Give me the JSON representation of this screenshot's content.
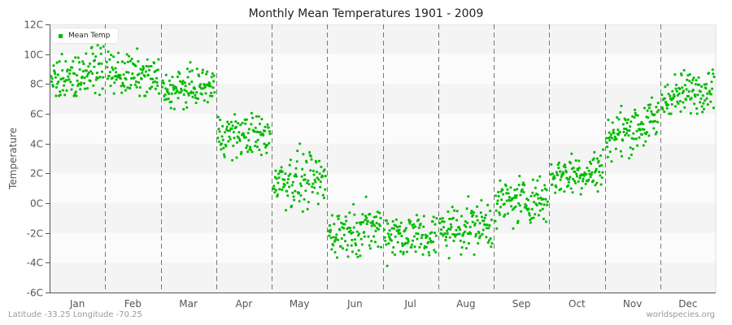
{
  "chart_data": {
    "type": "scatter",
    "title": "Monthly Mean Temperatures 1901 - 2009",
    "xlabel": "",
    "ylabel": "Temperature",
    "categories": [
      "Jan",
      "Feb",
      "Mar",
      "Apr",
      "May",
      "Jun",
      "Jul",
      "Aug",
      "Sep",
      "Oct",
      "Nov",
      "Dec"
    ],
    "yticks": [
      "12C",
      "10C",
      "8C",
      "6C",
      "4C",
      "2C",
      "0C",
      "-2C",
      "-4C",
      "-6C"
    ],
    "ytick_values": [
      12,
      10,
      8,
      6,
      4,
      2,
      0,
      -2,
      -4,
      -6
    ],
    "ylim": [
      -6,
      12
    ],
    "grid": "alternating horizontal bands, dashed vertical month dividers",
    "legend": {
      "position": "top-left",
      "entries": [
        "Mean Temp"
      ]
    },
    "series": [
      {
        "name": "Mean Temp",
        "color": "#00bb00",
        "points_per_month": 109,
        "monthly_distribution": [
          {
            "month": "Jan",
            "mean_start": 8.0,
            "mean_end": 9.2,
            "spread": 0.7,
            "min": 7.2,
            "max": 10.6
          },
          {
            "month": "Feb",
            "mean_start": 8.8,
            "mean_end": 8.3,
            "spread": 0.7,
            "min": 7.2,
            "max": 10.4
          },
          {
            "month": "Mar",
            "mean_start": 7.5,
            "mean_end": 7.9,
            "spread": 0.6,
            "min": 5.5,
            "max": 9.9
          },
          {
            "month": "Apr",
            "mean_start": 4.6,
            "mean_end": 4.5,
            "spread": 0.7,
            "min": 2.7,
            "max": 7.1
          },
          {
            "month": "May",
            "mean_start": 1.6,
            "mean_end": 1.4,
            "spread": 0.9,
            "min": -0.6,
            "max": 4.0
          },
          {
            "month": "Jun",
            "mean_start": -2.0,
            "mean_end": -1.6,
            "spread": 0.8,
            "min": -4.7,
            "max": 0.5
          },
          {
            "month": "Jul",
            "mean_start": -2.0,
            "mean_end": -2.3,
            "spread": 0.8,
            "min": -4.3,
            "max": 0.3
          },
          {
            "month": "Aug",
            "mean_start": -1.8,
            "mean_end": -1.4,
            "spread": 0.8,
            "min": -4.3,
            "max": 0.5
          },
          {
            "month": "Sep",
            "mean_start": 0.0,
            "mean_end": 0.3,
            "spread": 0.8,
            "min": -1.7,
            "max": 2.4
          },
          {
            "month": "Oct",
            "mean_start": 1.8,
            "mean_end": 2.2,
            "spread": 0.7,
            "min": -0.5,
            "max": 4.5
          },
          {
            "month": "Nov",
            "mean_start": 4.4,
            "mean_end": 5.6,
            "spread": 0.8,
            "min": 2.8,
            "max": 7.2
          },
          {
            "month": "Dec",
            "mean_start": 6.9,
            "mean_end": 8.0,
            "spread": 0.7,
            "min": 6.0,
            "max": 9.5
          }
        ]
      }
    ]
  },
  "footer": {
    "location": "Latitude -33.25 Longitude -70.25",
    "source": "worldspecies.org"
  },
  "colors": {
    "point": "#00bb00",
    "band_dark": "#f4f4f4",
    "band_light": "#fbfbfb",
    "axis": "#555555",
    "divider": "#777777"
  }
}
